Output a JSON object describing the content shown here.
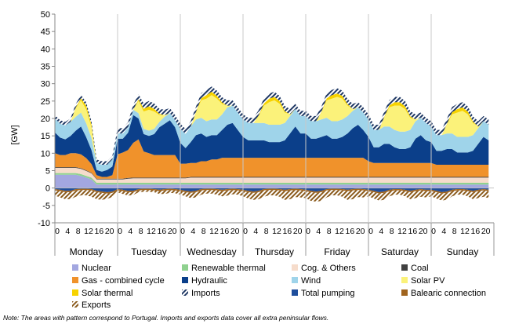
{
  "chart_data": {
    "type": "area",
    "ylabel": "[GW]",
    "ylim": [
      -10,
      50
    ],
    "yticks": [
      -10,
      -5,
      0,
      5,
      10,
      15,
      20,
      25,
      30,
      35,
      40,
      45,
      50
    ],
    "hour_ticks": [
      "0",
      "4",
      "8",
      "12",
      "16",
      "20"
    ],
    "days": [
      "Monday",
      "Tuesday",
      "Wednesday",
      "Thursday",
      "Friday",
      "Saturday",
      "Sunday"
    ],
    "hours_per_day": 24,
    "point_step_hours": 2,
    "grid": false,
    "legend_position": "bottom",
    "note": "Note: The areas with pattern correspond to Portugal. Imports and exports data cover all extra peninsular flows.",
    "series": [
      {
        "name": "Nuclear",
        "color": "#a3a7e0",
        "hatched": false,
        "values": [
          3.8,
          3.8,
          3.8,
          3.8,
          3.8,
          3.5,
          3.0,
          2.5,
          1.0,
          1.0,
          1.0,
          1.0,
          1.0,
          1.0,
          1.0,
          1.0,
          1.0,
          1.0,
          1.0,
          1.0,
          1.0,
          1.0,
          1.0,
          1.0,
          1.0,
          1.0,
          1.0,
          1.0,
          1.0,
          1.0,
          1.0,
          1.0,
          1.0,
          1.0,
          1.0,
          1.0,
          1.0,
          1.0,
          1.0,
          1.0,
          1.0,
          1.0,
          1.0,
          1.0,
          1.0,
          1.0,
          1.0,
          1.0,
          1.0,
          1.0,
          1.0,
          1.0,
          1.0,
          1.0,
          1.0,
          1.0,
          1.0,
          1.0,
          1.0,
          1.0,
          1.0,
          1.0,
          1.0,
          1.0,
          1.0,
          1.0,
          1.0,
          1.0,
          1.0,
          1.0,
          1.0,
          1.0,
          1.0,
          1.0,
          1.0,
          1.0,
          1.0,
          1.0,
          1.0,
          1.0,
          1.0,
          1.0,
          1.0,
          1.0
        ]
      },
      {
        "name": "Renewable thermal",
        "color": "#8fd18f",
        "hatched": false,
        "values": [
          0.5,
          0.5,
          0.5,
          0.5,
          0.5,
          0.5,
          0.5,
          0.5,
          0.5,
          0.5,
          0.5,
          0.5,
          0.5,
          0.5,
          0.5,
          0.5,
          0.5,
          0.5,
          0.5,
          0.5,
          0.5,
          0.5,
          0.5,
          0.5,
          0.5,
          0.5,
          0.5,
          0.5,
          0.5,
          0.5,
          0.5,
          0.5,
          0.5,
          0.5,
          0.5,
          0.5,
          0.5,
          0.5,
          0.5,
          0.5,
          0.5,
          0.5,
          0.5,
          0.5,
          0.5,
          0.5,
          0.5,
          0.5,
          0.5,
          0.5,
          0.5,
          0.5,
          0.5,
          0.5,
          0.5,
          0.5,
          0.5,
          0.5,
          0.5,
          0.5,
          0.5,
          0.5,
          0.5,
          0.5,
          0.5,
          0.5,
          0.5,
          0.5,
          0.5,
          0.5,
          0.5,
          0.5,
          0.5,
          0.5,
          0.5,
          0.5,
          0.5,
          0.5,
          0.5,
          0.5,
          0.5,
          0.5,
          0.5,
          0.5
        ]
      },
      {
        "name": "Cog. & Others",
        "color": "#f6dccb",
        "hatched": false,
        "values": [
          1.5,
          1.5,
          1.5,
          1.5,
          1.5,
          1.5,
          1.4,
          1.2,
          1.0,
          1.0,
          1.0,
          1.0,
          1.0,
          1.0,
          1.2,
          1.3,
          1.3,
          1.3,
          1.3,
          1.3,
          1.3,
          1.3,
          1.3,
          1.3,
          1.3,
          1.3,
          1.5,
          1.5,
          1.5,
          1.5,
          1.5,
          1.5,
          1.5,
          1.5,
          1.5,
          1.5,
          1.5,
          1.5,
          1.5,
          1.5,
          1.5,
          1.5,
          1.5,
          1.5,
          1.5,
          1.5,
          1.5,
          1.5,
          1.5,
          1.5,
          1.5,
          1.5,
          1.5,
          1.5,
          1.5,
          1.5,
          1.5,
          1.5,
          1.5,
          1.5,
          1.5,
          1.5,
          1.5,
          1.5,
          1.5,
          1.5,
          1.5,
          1.5,
          1.5,
          1.5,
          1.5,
          1.5,
          1.5,
          1.5,
          1.5,
          1.5,
          1.5,
          1.5,
          1.5,
          1.5,
          1.5,
          1.5,
          1.5,
          1.5
        ]
      },
      {
        "name": "Coal",
        "color": "#404040",
        "hatched": false,
        "values": [
          0.2,
          0.2,
          0.2,
          0.2,
          0.2,
          0.2,
          0.2,
          0.2,
          0.2,
          0.2,
          0.2,
          0.2,
          0.2,
          0.2,
          0.2,
          0.2,
          0.2,
          0.2,
          0.2,
          0.2,
          0.2,
          0.2,
          0.2,
          0.2,
          0.2,
          0.2,
          0.2,
          0.2,
          0.2,
          0.2,
          0.2,
          0.2,
          0.2,
          0.2,
          0.2,
          0.2,
          0.2,
          0.2,
          0.2,
          0.2,
          0.2,
          0.2,
          0.2,
          0.2,
          0.2,
          0.2,
          0.2,
          0.2,
          0.2,
          0.2,
          0.2,
          0.2,
          0.2,
          0.2,
          0.2,
          0.2,
          0.2,
          0.2,
          0.2,
          0.2,
          0.2,
          0.2,
          0.2,
          0.2,
          0.2,
          0.2,
          0.2,
          0.2,
          0.2,
          0.2,
          0.2,
          0.2,
          0.2,
          0.2,
          0.2,
          0.2,
          0.2,
          0.2,
          0.2,
          0.2,
          0.2,
          0.2,
          0.2,
          0.2
        ]
      },
      {
        "name": "Gas - combined cycle",
        "color": "#f0922b",
        "hatched": false,
        "values": [
          4.0,
          3.5,
          3.5,
          4.0,
          4.0,
          4.0,
          3.5,
          2.5,
          1.0,
          0.5,
          0.5,
          1.0,
          7.0,
          7.5,
          8.0,
          10.0,
          11.0,
          7.5,
          7.0,
          6.5,
          6.5,
          6.5,
          6.5,
          6.5,
          4.0,
          4.0,
          4.0,
          4.0,
          4.5,
          4.5,
          5.0,
          5.0,
          5.5,
          5.5,
          5.5,
          5.5,
          5.5,
          5.5,
          5.5,
          5.5,
          5.5,
          5.5,
          5.5,
          5.5,
          5.5,
          5.5,
          5.5,
          5.5,
          5.5,
          5.5,
          5.5,
          5.5,
          5.5,
          5.5,
          5.5,
          5.5,
          5.5,
          5.5,
          5.5,
          5.5,
          4.5,
          4.0,
          4.0,
          4.0,
          4.0,
          4.0,
          4.0,
          4.0,
          4.0,
          4.0,
          4.0,
          4.0,
          4.0,
          3.5,
          3.5,
          3.5,
          3.5,
          3.5,
          3.5,
          3.5,
          3.5,
          3.5,
          3.5,
          3.5
        ]
      },
      {
        "name": "Hydraulic",
        "color": "#0b3f8a",
        "hatched": false,
        "values": [
          6.0,
          5.0,
          4.5,
          5.0,
          6.5,
          8.0,
          6.0,
          4.0,
          1.5,
          1.5,
          2.0,
          2.5,
          4.5,
          4.0,
          5.0,
          8.0,
          6.0,
          5.0,
          5.0,
          6.0,
          8.0,
          9.0,
          10.0,
          8.0,
          6.0,
          4.5,
          6.0,
          8.0,
          8.0,
          7.0,
          7.0,
          7.0,
          8.0,
          9.5,
          10.0,
          8.0,
          6.0,
          5.0,
          5.0,
          5.0,
          5.0,
          4.5,
          4.5,
          4.5,
          5.0,
          7.0,
          9.0,
          7.0,
          7.0,
          5.5,
          5.5,
          6.0,
          6.5,
          5.5,
          5.5,
          6.0,
          7.0,
          8.5,
          9.5,
          8.0,
          7.0,
          4.5,
          4.5,
          5.5,
          5.5,
          4.5,
          4.0,
          4.0,
          4.5,
          7.0,
          8.0,
          6.5,
          6.0,
          4.0,
          4.0,
          4.5,
          4.5,
          3.5,
          3.5,
          3.5,
          4.0,
          6.0,
          8.0,
          7.0
        ]
      },
      {
        "name": "Wind",
        "color": "#9fd4ea",
        "hatched": false,
        "values": [
          4.0,
          4.0,
          4.0,
          4.0,
          4.0,
          4.0,
          4.0,
          3.5,
          2.0,
          2.0,
          1.5,
          2.0,
          1.5,
          1.5,
          1.5,
          1.5,
          1.5,
          1.5,
          1.5,
          1.5,
          1.5,
          2.0,
          2.0,
          2.0,
          4.0,
          4.0,
          4.5,
          4.5,
          4.5,
          4.5,
          4.5,
          4.5,
          4.5,
          5.0,
          5.0,
          5.0,
          5.0,
          5.0,
          5.0,
          5.0,
          5.0,
          5.0,
          5.0,
          5.0,
          5.0,
          5.0,
          5.0,
          5.0,
          5.0,
          5.0,
          5.0,
          5.0,
          5.0,
          5.0,
          5.0,
          5.0,
          5.0,
          5.0,
          5.0,
          5.0,
          5.0,
          5.0,
          5.0,
          5.0,
          5.0,
          5.0,
          5.0,
          5.0,
          5.0,
          5.0,
          5.0,
          5.0,
          4.5,
          4.5,
          4.5,
          4.5,
          4.5,
          4.5,
          4.5,
          4.5,
          4.5,
          4.5,
          4.5,
          4.5
        ]
      },
      {
        "name": "Solar PV",
        "color": "#fbf27a",
        "hatched": false,
        "values": [
          0.0,
          0.0,
          0.0,
          0.0,
          2.5,
          3.5,
          4.0,
          3.0,
          0.0,
          0.0,
          0.0,
          0.0,
          0.0,
          0.0,
          0.0,
          0.0,
          3.5,
          5.0,
          6.0,
          5.0,
          2.0,
          0.5,
          0.0,
          0.0,
          0.0,
          0.0,
          0.0,
          2.0,
          5.0,
          6.5,
          7.0,
          6.0,
          3.0,
          0.5,
          0.0,
          0.0,
          0.0,
          0.0,
          0.0,
          2.0,
          5.0,
          6.5,
          7.0,
          6.0,
          3.0,
          0.5,
          0.0,
          0.0,
          0.0,
          0.0,
          0.0,
          2.0,
          5.0,
          6.5,
          7.0,
          6.0,
          3.0,
          0.5,
          0.0,
          0.0,
          0.0,
          0.0,
          0.0,
          2.5,
          5.5,
          7.0,
          7.5,
          6.5,
          3.5,
          0.5,
          0.0,
          0.0,
          0.0,
          0.0,
          0.0,
          2.5,
          5.5,
          7.0,
          7.5,
          6.5,
          3.5,
          0.5,
          0.0,
          0.0
        ]
      },
      {
        "name": "Solar thermal",
        "color": "#f7d300",
        "hatched": false,
        "values": [
          0.0,
          0.0,
          0.0,
          0.0,
          0.2,
          0.6,
          1.0,
          0.8,
          0.0,
          0.0,
          0.0,
          0.0,
          0.0,
          0.0,
          0.0,
          0.0,
          0.5,
          0.8,
          1.0,
          0.8,
          0.3,
          0.0,
          0.0,
          0.0,
          0.0,
          0.0,
          0.0,
          0.2,
          0.6,
          1.0,
          1.0,
          0.8,
          0.4,
          0.0,
          0.0,
          0.0,
          0.0,
          0.0,
          0.0,
          0.2,
          0.6,
          1.0,
          1.0,
          0.8,
          0.4,
          0.0,
          0.0,
          0.0,
          0.0,
          0.0,
          0.0,
          0.2,
          0.6,
          1.0,
          1.0,
          0.8,
          0.4,
          0.0,
          0.0,
          0.0,
          0.0,
          0.0,
          0.0,
          0.2,
          0.6,
          1.0,
          1.0,
          0.8,
          0.4,
          0.0,
          0.0,
          0.0,
          0.0,
          0.0,
          0.0,
          0.2,
          0.6,
          1.0,
          1.0,
          0.8,
          0.4,
          0.0,
          0.0,
          0.0
        ]
      },
      {
        "name": "Imports",
        "color": "#1f3864",
        "hatched": true,
        "values": [
          1.0,
          1.0,
          1.0,
          1.0,
          1.0,
          1.0,
          1.0,
          1.0,
          1.0,
          1.0,
          1.0,
          1.0,
          1.5,
          1.5,
          1.5,
          1.5,
          1.5,
          1.5,
          1.5,
          1.5,
          1.5,
          1.5,
          1.5,
          1.5,
          1.5,
          1.5,
          1.5,
          1.5,
          1.5,
          1.5,
          1.5,
          1.5,
          1.5,
          1.5,
          1.5,
          1.5,
          1.5,
          1.5,
          1.5,
          1.5,
          1.5,
          1.5,
          1.5,
          1.5,
          1.5,
          1.5,
          1.5,
          1.5,
          1.5,
          1.5,
          1.5,
          1.5,
          1.5,
          1.5,
          1.5,
          1.5,
          1.5,
          1.5,
          1.5,
          1.5,
          1.5,
          1.5,
          1.5,
          1.5,
          1.5,
          1.5,
          1.5,
          1.5,
          1.5,
          1.5,
          1.5,
          1.5,
          1.5,
          1.5,
          1.5,
          1.5,
          1.5,
          1.5,
          1.5,
          1.5,
          1.5,
          1.5,
          1.5,
          1.5
        ]
      },
      {
        "name": "Total pumping",
        "color": "#1f4e9c",
        "hatched": false,
        "values": [
          -0.3,
          -0.5,
          -0.8,
          -0.8,
          -0.3,
          -0.2,
          -0.2,
          -0.3,
          -0.8,
          -1.0,
          -1.2,
          -1.0,
          -0.3,
          -0.5,
          -0.8,
          -0.8,
          -0.3,
          -0.2,
          -0.2,
          -0.3,
          -0.5,
          -0.3,
          -0.2,
          -0.3,
          -0.5,
          -0.8,
          -1.0,
          -0.8,
          -0.3,
          -0.2,
          -0.2,
          -0.3,
          -0.5,
          -0.3,
          -0.2,
          -0.3,
          -0.5,
          -0.8,
          -1.0,
          -0.8,
          -0.3,
          -0.2,
          -0.2,
          -0.3,
          -0.5,
          -0.3,
          -0.2,
          -0.3,
          -0.5,
          -0.8,
          -1.0,
          -0.8,
          -0.3,
          -0.2,
          -0.2,
          -0.3,
          -0.5,
          -0.3,
          -0.2,
          -0.3,
          -0.5,
          -0.8,
          -1.2,
          -1.0,
          -0.5,
          -0.3,
          -0.3,
          -0.5,
          -0.8,
          -0.5,
          -0.3,
          -0.5,
          -0.5,
          -0.8,
          -1.2,
          -1.0,
          -0.5,
          -0.3,
          -0.3,
          -0.5,
          -0.8,
          -0.5,
          -0.3,
          -0.5
        ]
      },
      {
        "name": "Balearic connection",
        "color": "#a0641e",
        "hatched": false,
        "values": [
          -0.4,
          -0.4,
          -0.4,
          -0.4,
          -0.4,
          -0.4,
          -0.4,
          -0.4,
          -0.4,
          -0.4,
          -0.4,
          -0.4,
          -0.4,
          -0.4,
          -0.4,
          -0.4,
          -0.4,
          -0.4,
          -0.4,
          -0.4,
          -0.4,
          -0.4,
          -0.4,
          -0.4,
          -0.4,
          -0.4,
          -0.4,
          -0.4,
          -0.4,
          -0.4,
          -0.4,
          -0.4,
          -0.4,
          -0.4,
          -0.4,
          -0.4,
          -0.4,
          -0.4,
          -0.4,
          -0.4,
          -0.4,
          -0.4,
          -0.4,
          -0.4,
          -0.4,
          -0.4,
          -0.4,
          -0.4,
          -0.4,
          -0.4,
          -0.4,
          -0.4,
          -0.4,
          -0.4,
          -0.4,
          -0.4,
          -0.4,
          -0.4,
          -0.4,
          -0.4,
          -0.4,
          -0.4,
          -0.4,
          -0.4,
          -0.4,
          -0.4,
          -0.4,
          -0.4,
          -0.4,
          -0.4,
          -0.4,
          -0.4,
          -0.4,
          -0.4,
          -0.4,
          -0.4,
          -0.4,
          -0.4,
          -0.4,
          -0.4,
          -0.4,
          -0.4,
          -0.4,
          -0.4
        ]
      },
      {
        "name": "Exports",
        "color": "#8a5a1c",
        "hatched": true,
        "values": [
          -1.5,
          -1.8,
          -2.0,
          -2.0,
          -1.8,
          -1.5,
          -1.5,
          -1.8,
          -2.0,
          -2.0,
          -1.5,
          -1.2,
          -0.5,
          -0.8,
          -1.0,
          -0.8,
          -0.5,
          -0.5,
          -0.5,
          -0.5,
          -0.8,
          -1.0,
          -0.8,
          -0.8,
          -1.0,
          -1.2,
          -1.5,
          -1.5,
          -1.2,
          -1.0,
          -1.0,
          -1.2,
          -1.5,
          -1.5,
          -1.2,
          -1.2,
          -1.5,
          -1.8,
          -2.0,
          -2.0,
          -1.8,
          -1.5,
          -1.5,
          -1.8,
          -2.5,
          -2.5,
          -2.0,
          -2.0,
          -2.0,
          -2.5,
          -2.5,
          -2.5,
          -2.0,
          -1.5,
          -1.5,
          -1.8,
          -2.5,
          -2.5,
          -2.0,
          -2.0,
          -1.5,
          -1.8,
          -2.0,
          -2.0,
          -1.5,
          -1.2,
          -1.2,
          -1.5,
          -2.0,
          -2.0,
          -1.8,
          -1.8,
          -1.5,
          -1.8,
          -2.0,
          -2.0,
          -1.5,
          -1.2,
          -1.2,
          -1.5,
          -2.0,
          -2.0,
          -1.8,
          -2.0
        ]
      }
    ]
  }
}
